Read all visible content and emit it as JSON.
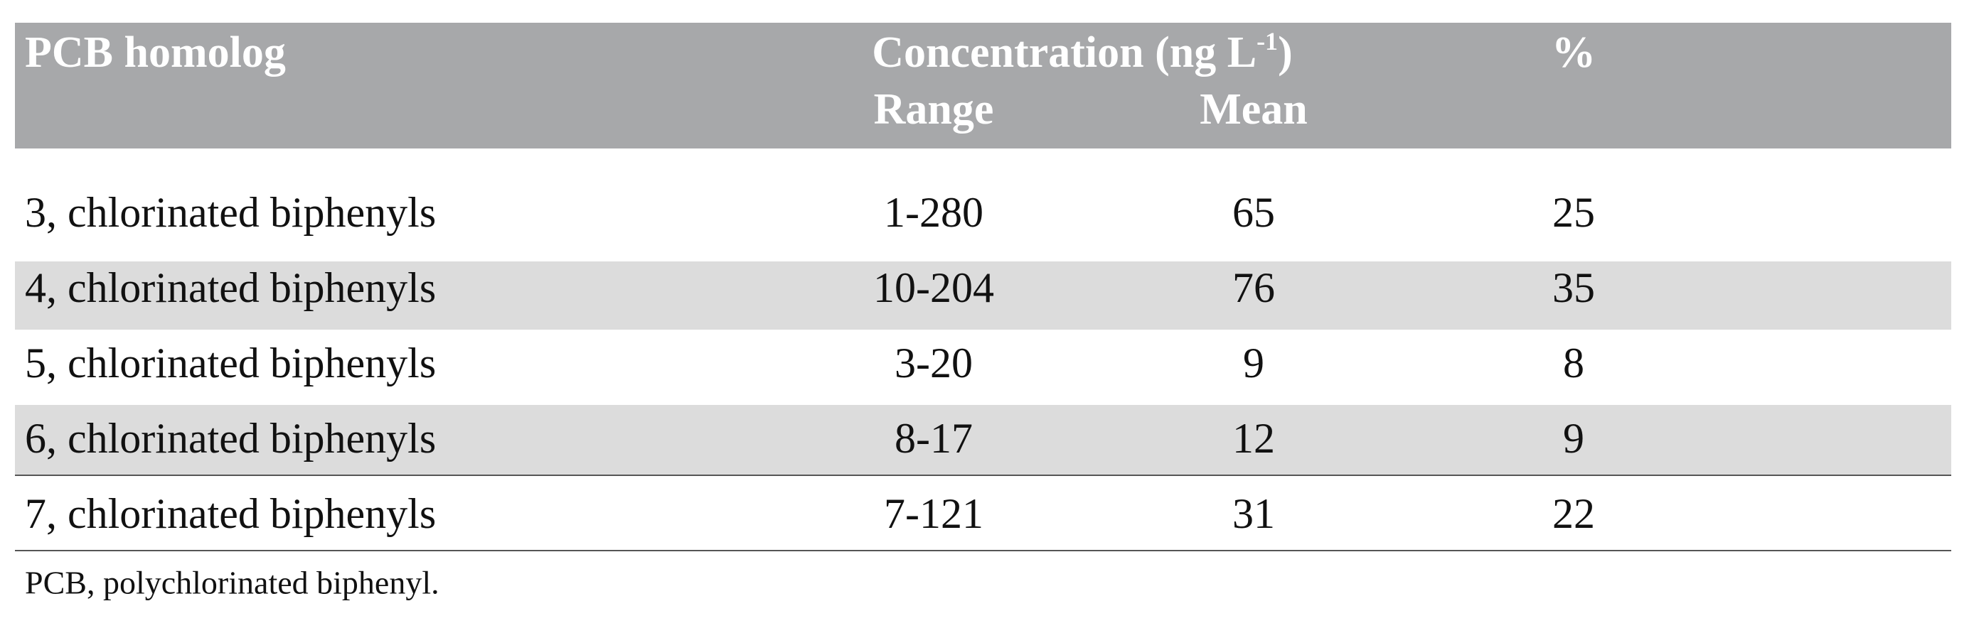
{
  "header": {
    "homolog": "PCB homolog",
    "concentration": {
      "text": "Concentration (ng L",
      "sup": "-1",
      "close": ")"
    },
    "percent": "%",
    "range": "Range",
    "mean": "Mean"
  },
  "table": {
    "rows": [
      [
        "3, chlorinated biphenyls",
        "1-280",
        65,
        25
      ],
      [
        "4, chlorinated biphenyls",
        "10-204",
        76,
        35
      ],
      [
        "5, chlorinated biphenyls",
        "3-20",
        9,
        8
      ],
      [
        "6, chlorinated biphenyls",
        "8-17",
        12,
        9
      ],
      [
        "7, chlorinated biphenyls",
        "7-121",
        31,
        22
      ]
    ]
  },
  "footnote": "PCB, polychlorinated biphenyl."
}
